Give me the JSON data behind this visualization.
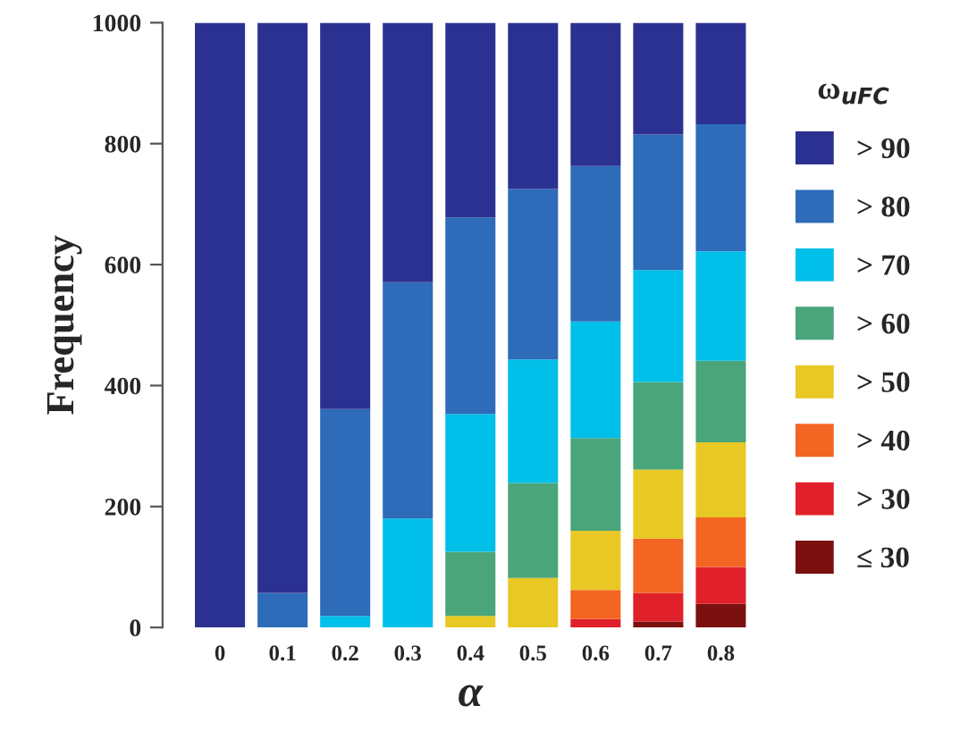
{
  "chart_data": {
    "type": "bar",
    "stacked": true,
    "xlabel": "α",
    "ylabel": "Frequency",
    "legend_title": "ω$_{uFC}$",
    "categories": [
      "0",
      "0.1",
      "0.2",
      "0.3",
      "0.4",
      "0.5",
      "0.6",
      "0.7",
      "0.8"
    ],
    "series": [
      {
        "name": "≤ 30",
        "color": "#7a1010",
        "values": [
          0,
          0,
          0,
          0,
          0,
          0,
          0,
          10,
          39
        ]
      },
      {
        "name": "> 30",
        "color": "#e0202a",
        "values": [
          0,
          0,
          0,
          0,
          0,
          0,
          14,
          47,
          61
        ]
      },
      {
        "name": "> 40",
        "color": "#f26522",
        "values": [
          0,
          0,
          0,
          0,
          0,
          0,
          48,
          90,
          82
        ]
      },
      {
        "name": "> 50",
        "color": "#e8c824",
        "values": [
          0,
          0,
          0,
          0,
          19,
          82,
          98,
          114,
          124
        ]
      },
      {
        "name": "> 60",
        "color": "#4aa57a",
        "values": [
          0,
          0,
          0,
          0,
          106,
          157,
          153,
          145,
          135
        ]
      },
      {
        "name": "> 70",
        "color": "#00bfe8",
        "values": [
          0,
          0,
          19,
          180,
          228,
          204,
          193,
          185,
          181
        ]
      },
      {
        "name": "> 80",
        "color": "#2e6bb8",
        "values": [
          0,
          57,
          342,
          391,
          325,
          282,
          257,
          224,
          210
        ]
      },
      {
        "name": "> 90",
        "color": "#2b3190",
        "values": [
          1000,
          943,
          639,
          429,
          322,
          275,
          237,
          185,
          168
        ]
      }
    ],
    "ylim": [
      0,
      1000
    ],
    "yticks": [
      0,
      200,
      400,
      600,
      800,
      1000
    ],
    "legend": "right",
    "grid": false
  }
}
